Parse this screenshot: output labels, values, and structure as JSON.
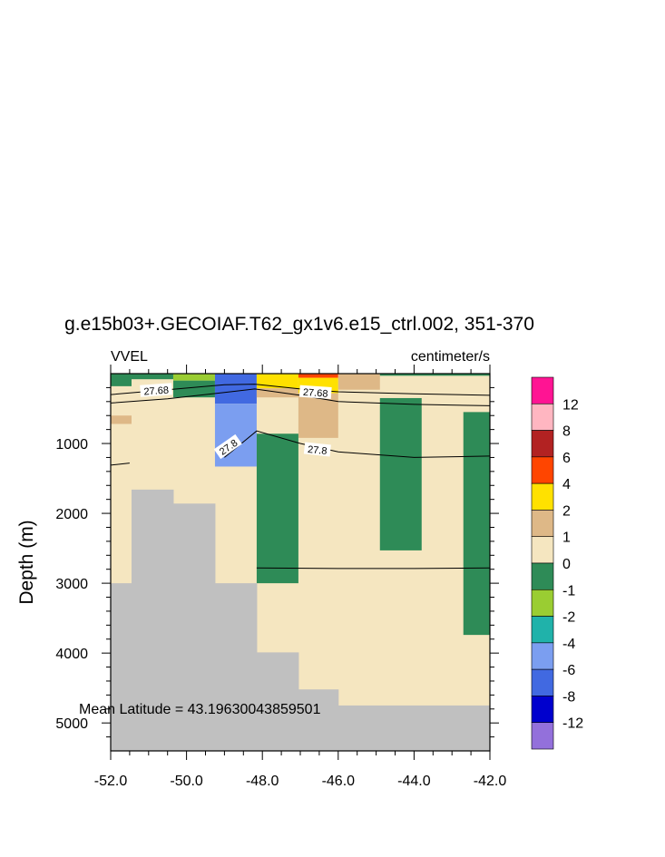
{
  "chart_data": {
    "type": "heatmap",
    "title": "g.e15b03+.GECOIAF.T62_gx1v6.e15_ctrl.002, 351-370",
    "left_label": "VVEL",
    "right_label": "centimeter/s",
    "ylabel": "Depth (m)",
    "xlabel": "",
    "annotation": "Mean Latitude = 43.19630043859501",
    "xlim": [
      -52.0,
      -42.0
    ],
    "ylim": [
      0,
      5400
    ],
    "y_reversed": true,
    "x_ticks": [
      -52.0,
      -50.0,
      -48.0,
      -46.0,
      -44.0,
      -42.0
    ],
    "x_tick_labels": [
      "-52.0",
      "-50.0",
      "-48.0",
      "-46.0",
      "-44.0",
      "-42.0"
    ],
    "y_ticks": [
      1000,
      2000,
      3000,
      4000,
      5000
    ],
    "y_tick_labels": [
      "1000",
      "2000",
      "3000",
      "4000",
      "5000"
    ],
    "colorbar": {
      "colors": [
        "#9370db",
        "#0000cd",
        "#4169e1",
        "#7b9ef0",
        "#20b2aa",
        "#9acd32",
        "#2e8b57",
        "#f5e6c0",
        "#deb887",
        "#ffe100",
        "#ff4500",
        "#b22222",
        "#ffb6c1",
        "#ff1493"
      ],
      "labels": [
        "-12",
        "-8",
        "-6",
        "-4",
        "-2",
        "-1",
        "0",
        "1",
        "2",
        "4",
        "6",
        "8",
        "12"
      ]
    },
    "background_fill": "#f5e6c0",
    "land_color": "#c0c0c0",
    "land": [
      [
        -52.0,
        -51.45,
        3000,
        5400
      ],
      [
        -51.45,
        -50.35,
        1660,
        5400
      ],
      [
        -50.35,
        -49.25,
        1860,
        5400
      ],
      [
        -49.25,
        -48.15,
        3000,
        5400
      ],
      [
        -48.15,
        -47.05,
        3990,
        5400
      ],
      [
        -47.05,
        -46.0,
        4520,
        5400
      ],
      [
        -46.0,
        -42.0,
        4750,
        5400
      ]
    ],
    "cells": [
      [
        -52.0,
        -51.45,
        0,
        180,
        "#2e8b57"
      ],
      [
        -51.45,
        -50.35,
        0,
        80,
        "#2e8b57"
      ],
      [
        -50.35,
        -49.25,
        0,
        100,
        "#9acd32"
      ],
      [
        -50.35,
        -49.25,
        100,
        340,
        "#2e8b57"
      ],
      [
        -52.0,
        -51.45,
        600,
        720,
        "#deb887"
      ],
      [
        -49.25,
        -48.15,
        0,
        430,
        "#4169e1"
      ],
      [
        -49.25,
        -48.15,
        430,
        1330,
        "#7b9ef0"
      ],
      [
        -48.15,
        -47.05,
        0,
        210,
        "#ffe100"
      ],
      [
        -48.15,
        -47.05,
        210,
        340,
        "#deb887"
      ],
      [
        -47.05,
        -46.0,
        0,
        60,
        "#ff4500"
      ],
      [
        -47.05,
        -46.0,
        60,
        280,
        "#ffe100"
      ],
      [
        -47.05,
        -46.0,
        280,
        920,
        "#deb887"
      ],
      [
        -46.0,
        -44.9,
        0,
        230,
        "#deb887"
      ],
      [
        -44.9,
        -42.0,
        0,
        30,
        "#2e8b57"
      ],
      [
        -48.15,
        -47.05,
        860,
        3000,
        "#2e8b57"
      ],
      [
        -44.9,
        -43.8,
        350,
        2530,
        "#2e8b57"
      ],
      [
        -42.7,
        -42.0,
        550,
        3740,
        "#2e8b57"
      ]
    ],
    "contours": [
      {
        "label": "27.68",
        "points": [
          [
            -52.0,
            300
          ],
          [
            -50.5,
            230
          ],
          [
            -49.0,
            160
          ],
          [
            -48.2,
            150
          ],
          [
            -47.0,
            220
          ],
          [
            -46.0,
            260
          ],
          [
            -44.0,
            290
          ],
          [
            -42.0,
            310
          ]
        ]
      },
      {
        "label": "27.8",
        "points": [
          [
            -52.0,
            420
          ],
          [
            -50.5,
            360
          ],
          [
            -49.0,
            270
          ],
          [
            -48.2,
            220
          ],
          [
            -47.0,
            310
          ],
          [
            -46.0,
            400
          ],
          [
            -44.0,
            440
          ],
          [
            -42.0,
            460
          ]
        ]
      },
      {
        "label": "27.8",
        "points": [
          [
            -49.0,
            1200
          ],
          [
            -48.15,
            820
          ],
          [
            -47.0,
            1000
          ],
          [
            -46.0,
            1120
          ],
          [
            -44.0,
            1200
          ],
          [
            -42.0,
            1180
          ]
        ]
      },
      {
        "label": "",
        "points": [
          [
            -52.0,
            1310
          ],
          [
            -51.5,
            1280
          ]
        ]
      },
      {
        "label": "",
        "points": [
          [
            -48.15,
            2780
          ],
          [
            -46.0,
            2790
          ],
          [
            -44.0,
            2790
          ],
          [
            -42.0,
            2780
          ]
        ]
      }
    ],
    "contour_labels": [
      {
        "text": "27.68",
        "x": -50.8,
        "y": 240,
        "angle": -4
      },
      {
        "text": "27.68",
        "x": -46.6,
        "y": 270,
        "angle": 4
      },
      {
        "text": "27.8",
        "x": -48.9,
        "y": 1050,
        "angle": -35
      },
      {
        "text": "27.8",
        "x": -46.55,
        "y": 1090,
        "angle": 6
      }
    ]
  }
}
